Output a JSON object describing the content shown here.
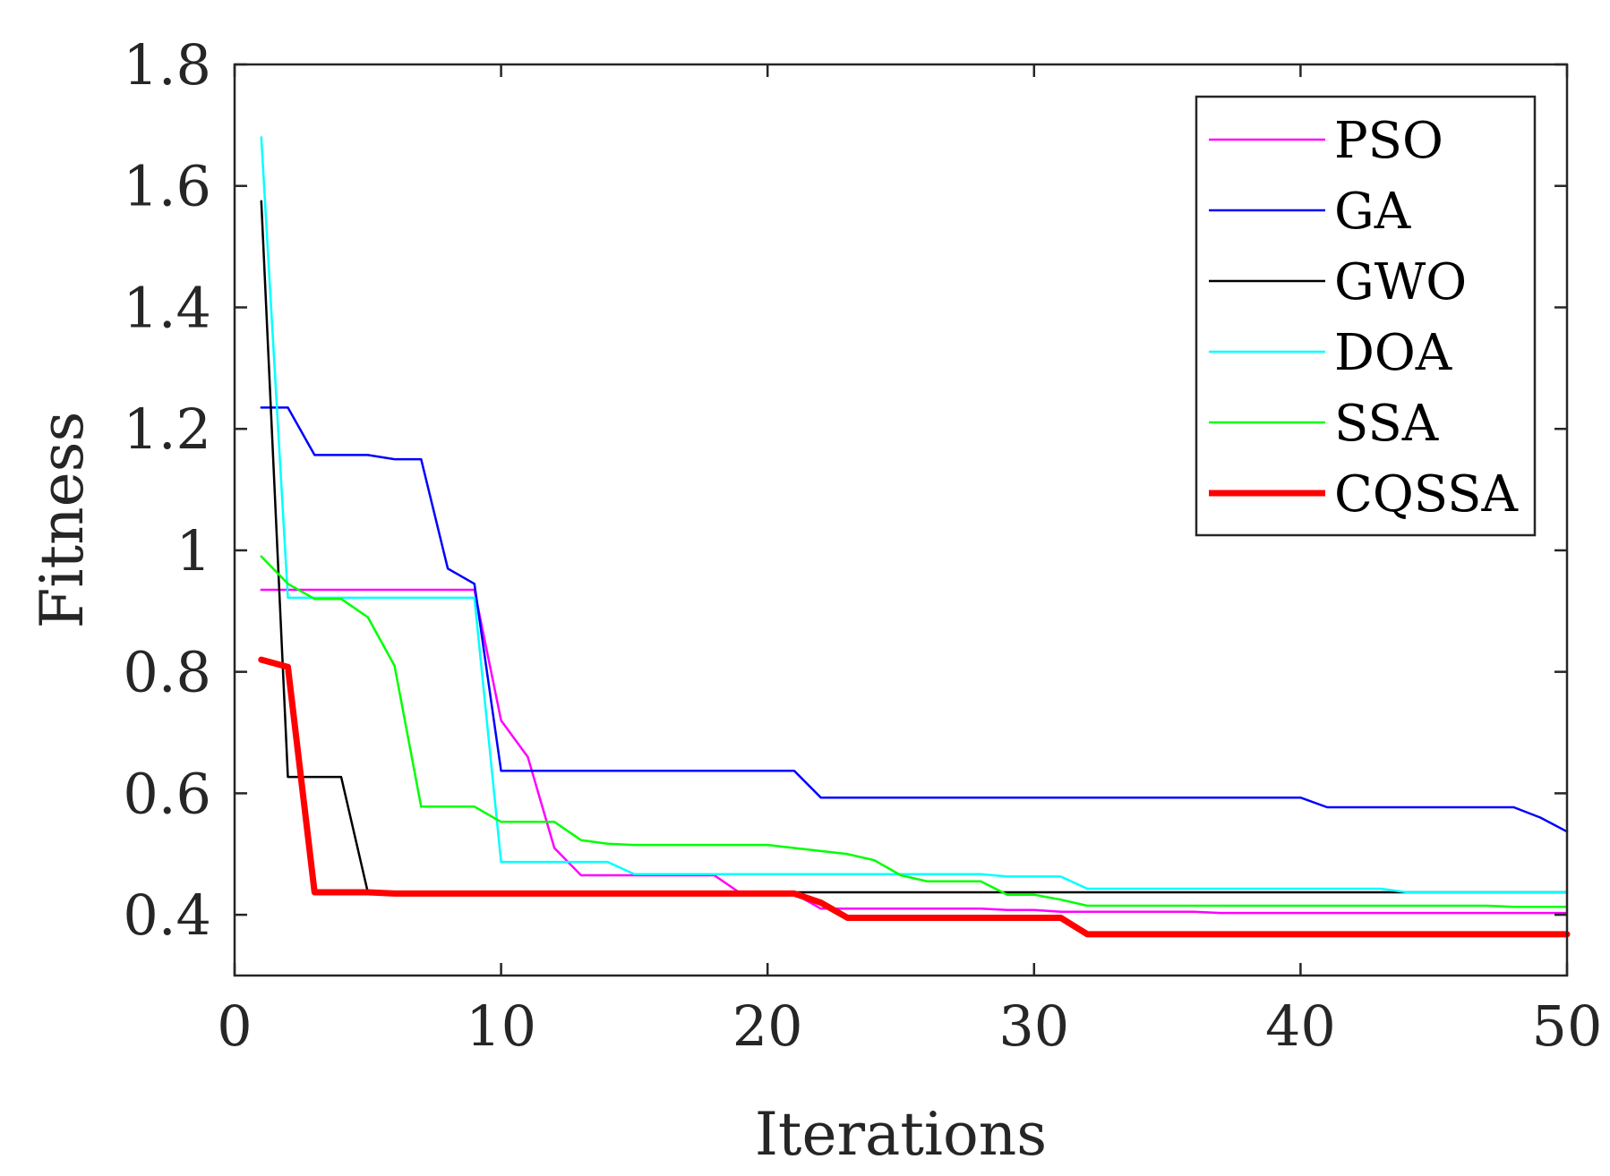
{
  "chart_data": {
    "type": "line",
    "title": "",
    "xlabel": "Iterations",
    "ylabel": "Fitness",
    "xlim": [
      0,
      50
    ],
    "ylim": [
      0.3,
      1.8
    ],
    "xticks": [
      0,
      10,
      20,
      30,
      40,
      50
    ],
    "xtick_labels": [
      "0",
      "10",
      "20",
      "30",
      "40",
      "50"
    ],
    "yticks": [
      0.4,
      0.6,
      0.8,
      1.0,
      1.2,
      1.4,
      1.6,
      1.8
    ],
    "ytick_labels": [
      "0.4",
      "0.6",
      "0.8",
      "1",
      "1.2",
      "1.4",
      "1.6",
      "1.8"
    ],
    "grid": false,
    "legend_position": "top-right",
    "series": [
      {
        "name": "PSO",
        "color": "#ff00ff",
        "values": [
          0.935,
          0.935,
          0.935,
          0.935,
          0.935,
          0.935,
          0.935,
          0.935,
          0.935,
          0.72,
          0.66,
          0.51,
          0.465,
          0.465,
          0.465,
          0.465,
          0.465,
          0.465,
          0.435,
          0.435,
          0.435,
          0.41,
          0.41,
          0.41,
          0.41,
          0.41,
          0.41,
          0.41,
          0.408,
          0.408,
          0.405,
          0.405,
          0.405,
          0.405,
          0.405,
          0.405,
          0.403,
          0.403,
          0.403,
          0.403,
          0.403,
          0.403,
          0.403,
          0.403,
          0.403,
          0.403,
          0.403,
          0.403,
          0.403,
          0.403
        ]
      },
      {
        "name": "GA",
        "color": "#0000ff",
        "values": [
          1.235,
          1.235,
          1.157,
          1.157,
          1.157,
          1.15,
          1.15,
          0.97,
          0.945,
          0.637,
          0.637,
          0.637,
          0.637,
          0.637,
          0.637,
          0.637,
          0.637,
          0.637,
          0.637,
          0.637,
          0.637,
          0.593,
          0.593,
          0.593,
          0.593,
          0.593,
          0.593,
          0.593,
          0.593,
          0.593,
          0.593,
          0.593,
          0.593,
          0.593,
          0.593,
          0.593,
          0.593,
          0.593,
          0.593,
          0.593,
          0.577,
          0.577,
          0.577,
          0.577,
          0.577,
          0.577,
          0.577,
          0.577,
          0.56,
          0.537
        ]
      },
      {
        "name": "GWO",
        "color": "#000000",
        "values": [
          1.575,
          0.627,
          0.627,
          0.627,
          0.437,
          0.437,
          0.437,
          0.437,
          0.437,
          0.437,
          0.437,
          0.437,
          0.437,
          0.437,
          0.437,
          0.437,
          0.437,
          0.437,
          0.437,
          0.437,
          0.437,
          0.437,
          0.437,
          0.437,
          0.437,
          0.437,
          0.437,
          0.437,
          0.437,
          0.437,
          0.437,
          0.437,
          0.437,
          0.437,
          0.437,
          0.437,
          0.437,
          0.437,
          0.437,
          0.437,
          0.437,
          0.437,
          0.437,
          0.437,
          0.437,
          0.437,
          0.437,
          0.437,
          0.437,
          0.437
        ]
      },
      {
        "name": "DOA",
        "color": "#00ffff",
        "values": [
          1.68,
          0.922,
          0.922,
          0.922,
          0.922,
          0.922,
          0.922,
          0.922,
          0.922,
          0.487,
          0.487,
          0.487,
          0.487,
          0.487,
          0.467,
          0.467,
          0.467,
          0.467,
          0.467,
          0.467,
          0.467,
          0.467,
          0.467,
          0.467,
          0.467,
          0.467,
          0.467,
          0.467,
          0.463,
          0.463,
          0.463,
          0.443,
          0.443,
          0.443,
          0.443,
          0.443,
          0.443,
          0.443,
          0.443,
          0.443,
          0.443,
          0.443,
          0.443,
          0.437,
          0.437,
          0.437,
          0.437,
          0.437,
          0.437,
          0.437
        ]
      },
      {
        "name": "SSA",
        "color": "#00ff00",
        "values": [
          0.99,
          0.945,
          0.92,
          0.92,
          0.89,
          0.81,
          0.578,
          0.578,
          0.578,
          0.553,
          0.553,
          0.553,
          0.523,
          0.517,
          0.515,
          0.515,
          0.515,
          0.515,
          0.515,
          0.515,
          0.51,
          0.505,
          0.5,
          0.49,
          0.465,
          0.455,
          0.455,
          0.455,
          0.433,
          0.433,
          0.425,
          0.415,
          0.415,
          0.415,
          0.415,
          0.415,
          0.415,
          0.415,
          0.415,
          0.415,
          0.415,
          0.415,
          0.415,
          0.415,
          0.415,
          0.415,
          0.415,
          0.413,
          0.413,
          0.413
        ]
      },
      {
        "name": "CQSSA",
        "color": "#ff0000",
        "values": [
          0.82,
          0.808,
          0.437,
          0.437,
          0.437,
          0.435,
          0.435,
          0.435,
          0.435,
          0.435,
          0.435,
          0.435,
          0.435,
          0.435,
          0.435,
          0.435,
          0.435,
          0.435,
          0.435,
          0.435,
          0.435,
          0.42,
          0.395,
          0.395,
          0.395,
          0.395,
          0.395,
          0.395,
          0.395,
          0.395,
          0.395,
          0.368,
          0.368,
          0.368,
          0.368,
          0.368,
          0.368,
          0.368,
          0.368,
          0.368,
          0.368,
          0.368,
          0.368,
          0.368,
          0.368,
          0.368,
          0.368,
          0.368,
          0.368,
          0.368
        ]
      }
    ]
  }
}
